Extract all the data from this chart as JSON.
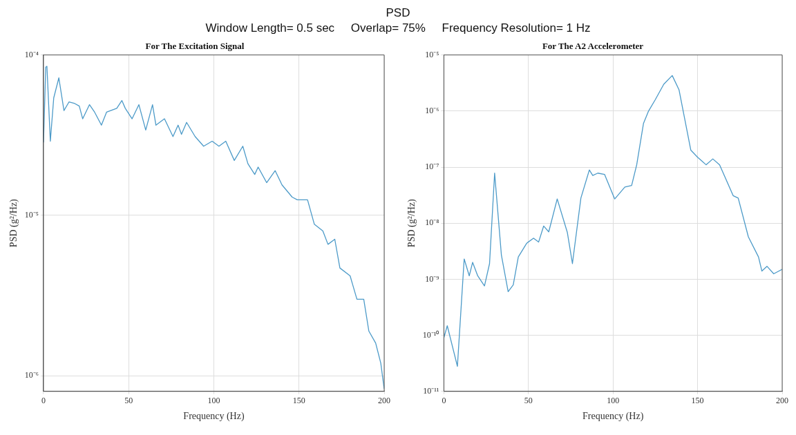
{
  "chart_data": [
    {
      "type": "line",
      "title": "For The Excitation Signal",
      "xlabel": "Frequency (Hz)",
      "ylabel": "PSD (g²/Hz)",
      "annotations": [
        "PSD",
        "Window Length= 0.5 sec     Overlap= 75%     Frequency Resolution= 1 Hz"
      ],
      "series": [
        {
          "color": "#4c9ac8",
          "x": [
            0,
            1.3,
            2,
            4,
            6,
            9,
            12,
            15,
            18,
            21,
            23,
            27,
            30,
            34,
            37,
            43,
            46,
            48,
            52,
            56,
            60,
            64,
            66,
            71,
            76,
            79,
            81,
            84,
            89,
            94,
            99,
            103,
            107,
            112,
            117,
            120,
            124,
            126,
            131,
            136,
            140,
            146,
            149,
            155,
            159,
            164,
            167,
            171,
            174,
            180,
            184,
            188,
            191,
            195,
            198,
            200
          ],
          "values": [
            2.85e-05,
            8.4e-05,
            8.5e-05,
            2.9e-05,
            5.4e-05,
            7.2e-05,
            4.5e-05,
            5.1e-05,
            5e-05,
            4.8e-05,
            4e-05,
            4.9e-05,
            4.4e-05,
            3.65e-05,
            4.4e-05,
            4.65e-05,
            5.2e-05,
            4.65e-05,
            4e-05,
            4.9e-05,
            3.4e-05,
            4.9e-05,
            3.65e-05,
            4e-05,
            3.1e-05,
            3.65e-05,
            3.2e-05,
            3.8e-05,
            3.1e-05,
            2.7e-05,
            2.9e-05,
            2.7e-05,
            2.9e-05,
            2.2e-05,
            2.7e-05,
            2.1e-05,
            1.8e-05,
            2e-05,
            1.6e-05,
            1.9e-05,
            1.55e-05,
            1.3e-05,
            1.25e-05,
            1.25e-05,
            8.8e-06,
            8e-06,
            6.6e-06,
            7.1e-06,
            4.7e-06,
            4.2e-06,
            3e-06,
            3e-06,
            1.9e-06,
            1.6e-06,
            1.2e-06,
            8.3e-07
          ]
        }
      ],
      "xlim": [
        0,
        200
      ],
      "xticks": [
        0,
        50,
        100,
        150,
        200
      ],
      "ylim": [
        8e-07,
        0.0001
      ],
      "yticks": [
        {
          "value": 1e-06,
          "label": "10⁻⁶"
        },
        {
          "value": 1e-05,
          "label": "10⁻⁵"
        },
        {
          "value": 0.0001,
          "label": "10⁻⁴"
        }
      ],
      "log": "y",
      "grid": true,
      "marker": "none",
      "line_style": "solid"
    },
    {
      "type": "line",
      "title": "For The A2 Accelerometer",
      "xlabel": "Frequency (Hz)",
      "ylabel": "PSD (g²/Hz)",
      "series": [
        {
          "color": "#4c9ac8",
          "x": [
            0,
            2,
            8,
            12,
            15,
            17,
            20,
            24,
            27,
            30,
            34,
            38,
            41,
            44,
            49,
            53,
            56,
            59,
            62,
            67,
            73,
            76,
            81,
            86,
            88,
            91,
            95,
            101,
            107,
            111,
            114,
            118,
            121,
            125,
            130,
            135,
            139,
            146,
            150,
            155,
            159,
            163,
            171,
            174,
            180,
            186,
            188,
            191,
            195,
            200
          ],
          "values": [
            9e-11,
            1.48e-10,
            2.8e-11,
            2.3e-09,
            1.15e-09,
            2e-09,
            1.15e-09,
            7.6e-10,
            1.9e-09,
            7.8e-08,
            2.7e-09,
            6e-10,
            7.9e-10,
            2.5e-09,
            4.4e-09,
            5.4e-09,
            4.6e-09,
            8.9e-09,
            7e-09,
            2.7e-08,
            6.8e-09,
            1.9e-09,
            2.8e-08,
            8.9e-08,
            7.1e-08,
            7.8e-08,
            7.4e-08,
            2.7e-08,
            4.4e-08,
            4.7e-08,
            1.1e-07,
            6e-07,
            1e-06,
            1.6e-06,
            3e-06,
            4.3e-06,
            2.4e-06,
            2e-07,
            1.5e-07,
            1.1e-07,
            1.4e-07,
            1.1e-07,
            3.1e-08,
            2.8e-08,
            5.7e-09,
            2.5e-09,
            1.4e-09,
            1.7e-09,
            1.25e-09,
            1.5e-09
          ]
        }
      ],
      "xlim": [
        0,
        200
      ],
      "xticks": [
        0,
        50,
        100,
        150,
        200
      ],
      "ylim": [
        1e-11,
        1e-05
      ],
      "yticks": [
        {
          "value": 1e-11,
          "label": "10⁻¹¹"
        },
        {
          "value": 1e-10,
          "label": "10⁻¹⁰"
        },
        {
          "value": 1e-09,
          "label": "10⁻⁹"
        },
        {
          "value": 1e-08,
          "label": "10⁻⁸"
        },
        {
          "value": 1e-07,
          "label": "10⁻⁷"
        },
        {
          "value": 1e-06,
          "label": "10⁻⁶"
        },
        {
          "value": 1e-05,
          "label": "10⁻⁵"
        }
      ],
      "log": "y",
      "grid": true,
      "marker": "none",
      "line_style": "solid"
    }
  ]
}
